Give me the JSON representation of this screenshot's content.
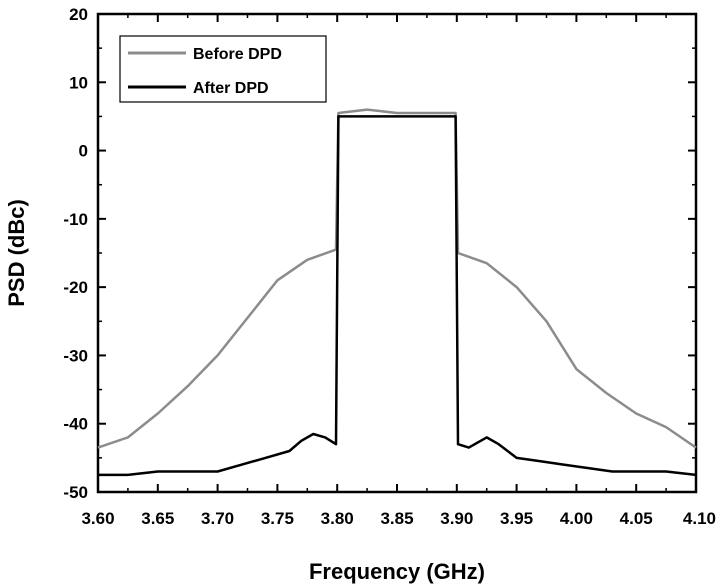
{
  "chart_data": {
    "type": "line",
    "title": "",
    "xlabel": "Frequency (GHz)",
    "ylabel": "PSD (dBc)",
    "xlim": [
      3.6,
      4.1
    ],
    "ylim": [
      -50,
      20
    ],
    "x_ticks": [
      "3.60",
      "3.65",
      "3.70",
      "3.75",
      "3.80",
      "3.85",
      "3.90",
      "3.95",
      "4.00",
      "4.05",
      "4.10"
    ],
    "y_ticks": [
      "20",
      "10",
      "0",
      "-10",
      "-20",
      "-30",
      "-40",
      "-50"
    ],
    "legend_position": "top-left",
    "grid": false,
    "series": [
      {
        "name": "Before DPD",
        "color": "#8c8c8c",
        "x": [
          3.6,
          3.625,
          3.65,
          3.675,
          3.7,
          3.725,
          3.75,
          3.775,
          3.799,
          3.801,
          3.825,
          3.85,
          3.875,
          3.899,
          3.901,
          3.925,
          3.95,
          3.975,
          4.0,
          4.025,
          4.05,
          4.075,
          4.1
        ],
        "y": [
          -43.5,
          -42,
          -38.5,
          -34.5,
          -30,
          -24.5,
          -19,
          -16,
          -14.5,
          5.5,
          6,
          5.5,
          5.5,
          5.5,
          -15,
          -16.5,
          -20,
          -25,
          -32,
          -35.5,
          -38.5,
          -40.5,
          -43.5
        ]
      },
      {
        "name": "After DPD",
        "color": "#000000",
        "x": [
          3.6,
          3.625,
          3.65,
          3.675,
          3.7,
          3.72,
          3.74,
          3.76,
          3.77,
          3.78,
          3.79,
          3.799,
          3.801,
          3.825,
          3.85,
          3.875,
          3.899,
          3.901,
          3.91,
          3.925,
          3.935,
          3.95,
          3.97,
          3.99,
          4.01,
          4.03,
          4.05,
          4.075,
          4.1
        ],
        "y": [
          -47.5,
          -47.5,
          -47,
          -47,
          -47,
          -46,
          -45,
          -44,
          -42.5,
          -41.5,
          -42,
          -43,
          5,
          5,
          5,
          5,
          5,
          -43,
          -43.5,
          -42,
          -43,
          -45,
          -45.5,
          -46,
          -46.5,
          -47,
          -47,
          -47,
          -47.5
        ]
      }
    ]
  }
}
